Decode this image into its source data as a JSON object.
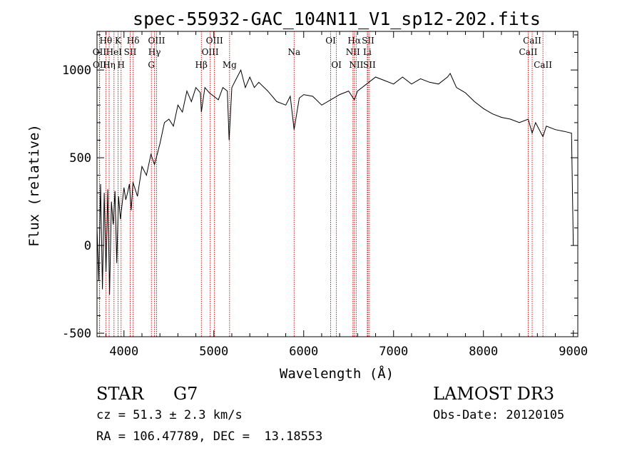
{
  "chart_data": {
    "type": "line",
    "title": "spec-55932-GAC_104N11_V1_sp12-202.fits",
    "xlabel": "Wavelength (Å)",
    "ylabel": "Flux (relative)",
    "xlim": [
      3700,
      9050
    ],
    "ylim": [
      -520,
      1220
    ],
    "xticks": [
      4000,
      5000,
      6000,
      7000,
      8000,
      9000
    ],
    "yticks": [
      -500,
      0,
      500,
      1000
    ],
    "line_color": "#000000",
    "marker_color": "#cc0000",
    "spectrum": {
      "x": [
        3700,
        3720,
        3740,
        3760,
        3780,
        3800,
        3820,
        3840,
        3860,
        3880,
        3900,
        3920,
        3940,
        3960,
        3980,
        4000,
        4020,
        4040,
        4060,
        4080,
        4100,
        4150,
        4200,
        4250,
        4300,
        4340,
        4400,
        4450,
        4500,
        4550,
        4600,
        4650,
        4700,
        4750,
        4800,
        4850,
        4861,
        4900,
        4950,
        5000,
        5050,
        5100,
        5150,
        5170,
        5180,
        5200,
        5250,
        5300,
        5350,
        5400,
        5450,
        5500,
        5600,
        5700,
        5800,
        5850,
        5893,
        5950,
        6000,
        6100,
        6200,
        6300,
        6400,
        6500,
        6563,
        6600,
        6700,
        6800,
        6900,
        7000,
        7100,
        7200,
        7300,
        7400,
        7500,
        7600,
        7630,
        7700,
        7800,
        7900,
        8000,
        8100,
        8200,
        8300,
        8400,
        8498,
        8542,
        8580,
        8662,
        8700,
        8800,
        8900,
        8980,
        9000
      ],
      "y": [
        100,
        -200,
        350,
        -250,
        300,
        -150,
        320,
        -280,
        250,
        120,
        310,
        -100,
        280,
        150,
        240,
        330,
        260,
        300,
        350,
        200,
        360,
        280,
        450,
        400,
        520,
        460,
        580,
        700,
        720,
        680,
        800,
        760,
        880,
        820,
        900,
        870,
        760,
        900,
        870,
        850,
        830,
        900,
        880,
        600,
        700,
        900,
        950,
        1000,
        900,
        960,
        900,
        930,
        880,
        820,
        800,
        850,
        660,
        840,
        860,
        850,
        800,
        830,
        860,
        880,
        830,
        880,
        920,
        960,
        940,
        920,
        960,
        920,
        950,
        930,
        920,
        960,
        980,
        900,
        870,
        820,
        780,
        750,
        730,
        720,
        700,
        720,
        640,
        700,
        620,
        680,
        660,
        650,
        640,
        0
      ]
    },
    "lines": [
      {
        "label": "Hθ",
        "wl": 3798,
        "row": 0
      },
      {
        "label": "OII",
        "wl": 3727,
        "row": 1
      },
      {
        "label": "OII",
        "wl": 3729,
        "row": 2
      },
      {
        "label": "K",
        "wl": 3934,
        "row": 0
      },
      {
        "label": "HeI",
        "wl": 3889,
        "row": 1
      },
      {
        "label": "Hη",
        "wl": 3835,
        "row": 2
      },
      {
        "label": "SII",
        "wl": 4069,
        "row": 1
      },
      {
        "label": "H",
        "wl": 3968,
        "row": 2
      },
      {
        "label": "Hδ",
        "wl": 4102,
        "row": 0
      },
      {
        "label": "OIII",
        "wl": 4363,
        "row": 0
      },
      {
        "label": "Hγ",
        "wl": 4340,
        "row": 1
      },
      {
        "label": "G",
        "wl": 4305,
        "row": 2
      },
      {
        "label": "OIII",
        "wl": 5007,
        "row": 0
      },
      {
        "label": "OIII",
        "wl": 4959,
        "row": 1
      },
      {
        "label": "Hβ",
        "wl": 4861,
        "row": 2
      },
      {
        "label": "Mg",
        "wl": 5175,
        "row": 2
      },
      {
        "label": "Na",
        "wl": 5893,
        "row": 1
      },
      {
        "label": "OI",
        "wl": 6300,
        "row": 0
      },
      {
        "label": "OI",
        "wl": 6364,
        "row": 2
      },
      {
        "label": "Hα",
        "wl": 6563,
        "row": 0
      },
      {
        "label": "NII",
        "wl": 6548,
        "row": 1
      },
      {
        "label": "NII",
        "wl": 6584,
        "row": 2
      },
      {
        "label": "SII",
        "wl": 6716,
        "row": 0
      },
      {
        "label": "Li",
        "wl": 6708,
        "row": 1
      },
      {
        "label": "SII",
        "wl": 6731,
        "row": 2
      },
      {
        "label": "CaII",
        "wl": 8542,
        "row": 0
      },
      {
        "label": "CaII",
        "wl": 8498,
        "row": 1
      },
      {
        "label": "CaII",
        "wl": 8662,
        "row": 2
      }
    ]
  },
  "footer": {
    "class_label": "STAR",
    "subclass": "G7",
    "survey": "LAMOST DR3",
    "redshift_text": "cz = 51.3 ± 2.3 km/s",
    "obs_date": "Obs-Date: 20120105",
    "coords_text": "RA = 106.47789, DEC =  13.18553"
  }
}
